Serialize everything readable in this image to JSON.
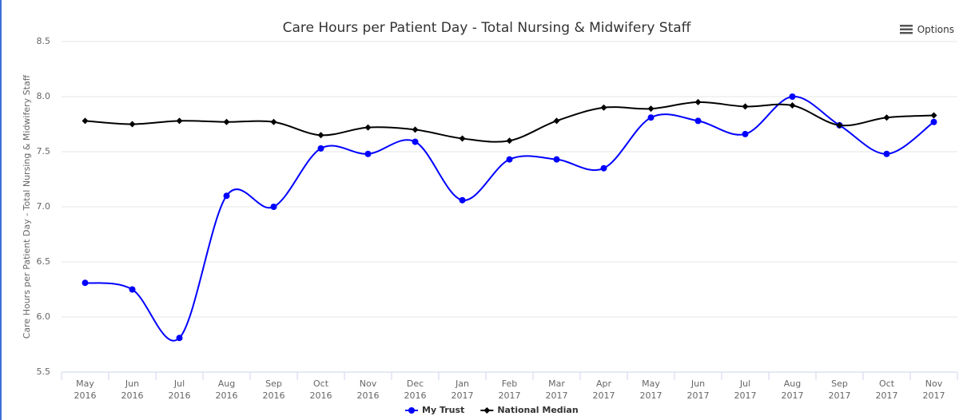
{
  "chart_data": {
    "type": "line",
    "title": "Care Hours per Patient Day - Total Nursing & Midwifery Staff",
    "y_axis_label": "Care Hours per Patient Day - Total Nursing & Midwifery Staff",
    "options_label": "Options",
    "categories": [
      "May 2016",
      "Jun 2016",
      "Jul 2016",
      "Aug 2016",
      "Sep 2016",
      "Oct 2016",
      "Nov 2016",
      "Dec 2016",
      "Jan 2017",
      "Feb 2017",
      "Mar 2017",
      "Apr 2017",
      "May 2017",
      "Jun 2017",
      "Jul 2017",
      "Aug 2017",
      "Sep 2017",
      "Oct 2017",
      "Nov 2017"
    ],
    "series": [
      {
        "name": "My Trust",
        "color": "#0000ff",
        "marker": "circle",
        "values": [
          6.31,
          6.25,
          5.81,
          7.1,
          7.0,
          7.53,
          7.48,
          7.59,
          7.06,
          7.43,
          7.43,
          7.35,
          7.81,
          7.78,
          7.66,
          8.0,
          7.74,
          7.48,
          7.77
        ]
      },
      {
        "name": "National Median",
        "color": "#000000",
        "marker": "diamond",
        "values": [
          7.78,
          7.75,
          7.78,
          7.77,
          7.77,
          7.65,
          7.72,
          7.7,
          7.62,
          7.6,
          7.78,
          7.9,
          7.89,
          7.95,
          7.91,
          7.92,
          7.74,
          7.81,
          7.83
        ]
      }
    ],
    "ylim": [
      5.5,
      8.5
    ],
    "yticks": [
      5.5,
      {
        "value": 6,
        "label": "6.0"
      },
      6.5,
      {
        "value": 7,
        "label": "7.0"
      },
      7.5,
      {
        "value": 8,
        "label": "8.0"
      },
      8.5
    ],
    "grid": true,
    "smooth": true,
    "legend": "bottom"
  }
}
